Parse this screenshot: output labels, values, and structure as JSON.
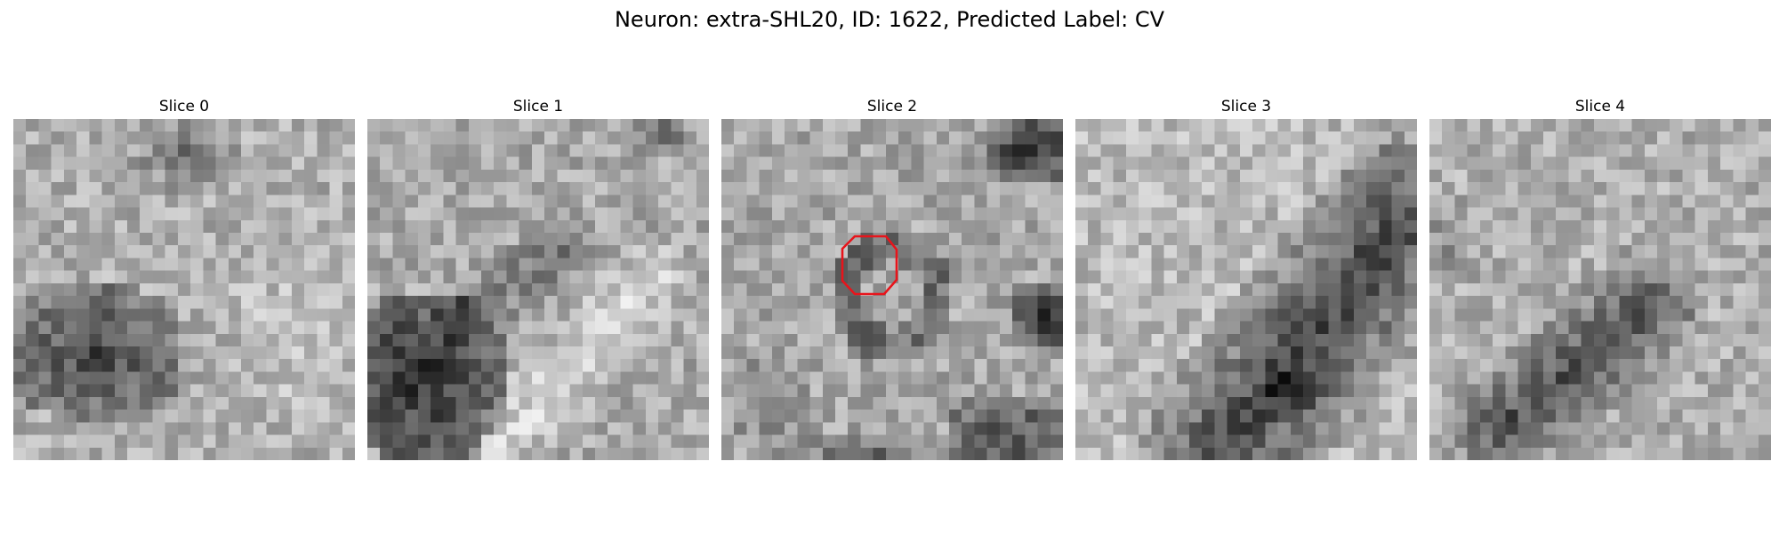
{
  "figure": {
    "title": "Neuron: extra-SHL20, ID: 1622, Predicted Label: CV"
  },
  "slices": [
    {
      "title": "Slice 0"
    },
    {
      "title": "Slice 1"
    },
    {
      "title": "Slice 2"
    },
    {
      "title": "Slice 3"
    },
    {
      "title": "Slice 4"
    }
  ],
  "colors": {
    "marker": "#e8141b",
    "background": "#ffffff"
  },
  "image": {
    "colormap": "gray",
    "grid_size": 27,
    "highlighted_slice": "Slice 2",
    "marker_shape": "octagon outline"
  }
}
